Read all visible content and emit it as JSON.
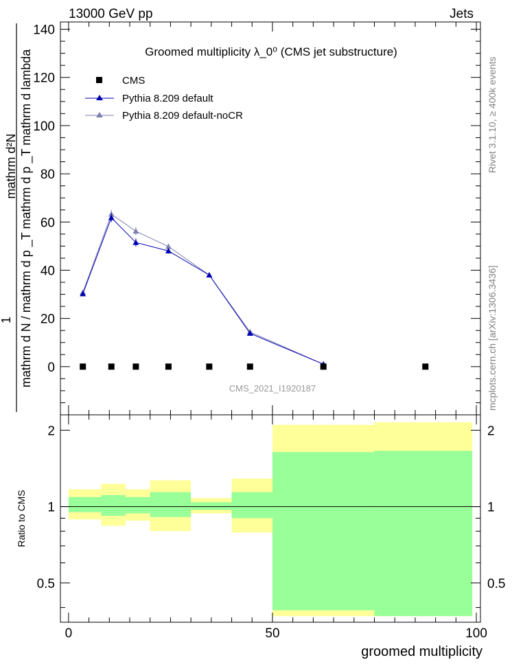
{
  "header": {
    "left": "13000 GeV pp",
    "right": "Jets"
  },
  "side_labels": {
    "rivet": "Rivet 3.1.10, ≥ 400k events",
    "mcplots": "mcplots.cern.ch [arXiv:1306.3436]"
  },
  "colors": {
    "data": "#000000",
    "pythia_default": "#0000b2",
    "pythia_nocr": "#7f7fb2",
    "band_inner": "#99ff99",
    "band_outer": "#ffff99"
  },
  "chart_data": [
    {
      "type": "scatter",
      "title": "Groomed multiplicity  λ_0⁰ (CMS jet substructure)",
      "analysis_label": "CMS_2021_I1920187",
      "ylabel_top": "1",
      "ylabel_mid": "mathrm d N / mathrm d p _T mathrm d p _T mathrm d lambda",
      "ylabel_bot": "mathrm d²N",
      "xlim": [
        -2,
        101
      ],
      "ylim": [
        -20,
        143
      ],
      "yticks": [
        0,
        20,
        40,
        60,
        80,
        100,
        120,
        140
      ],
      "legend": [
        "CMS",
        "Pythia 8.209 default",
        "Pythia 8.209 default-noCR"
      ],
      "series": [
        {
          "name": "CMS",
          "marker": "square",
          "x": [
            3.5,
            10.5,
            16.5,
            24.5,
            34.5,
            44.5,
            62.5,
            87.5
          ],
          "y": [
            0,
            0,
            0,
            0,
            0,
            0,
            0,
            0
          ]
        },
        {
          "name": "Pythia 8.209 default",
          "marker": "triangle",
          "x": [
            3.5,
            10.5,
            16.5,
            24.5,
            34.5,
            44.5,
            62.5
          ],
          "y": [
            30.2,
            61.8,
            51.5,
            48.0,
            38.0,
            13.8,
            1.0
          ],
          "err": [
            0.8,
            1.8,
            1.7,
            1.1,
            0.6,
            0.6,
            0.2
          ]
        },
        {
          "name": "Pythia 8.209 default-noCR",
          "marker": "triangle",
          "x": [
            3.5,
            10.5,
            16.5,
            24.5,
            34.5,
            44.5,
            62.5
          ],
          "y": [
            30.8,
            63.2,
            56.2,
            49.8,
            38.0,
            14.4,
            1.0
          ],
          "err": [
            0.8,
            1.8,
            1.7,
            1.1,
            0.6,
            0.6,
            0.2
          ]
        }
      ]
    },
    {
      "type": "area",
      "ylabel": "Ratio to CMS",
      "xlabel": "groomed multiplicity",
      "xlim": [
        -2,
        101
      ],
      "ylim": [
        0.35,
        2.3
      ],
      "xticks": [
        0,
        50,
        100
      ],
      "yticks": [
        0.5,
        1,
        2
      ],
      "reference_line": 1,
      "bins": [
        {
          "lo": 0,
          "hi": 8,
          "inner": [
            0.95,
            1.09
          ],
          "outer": [
            0.89,
            1.17
          ]
        },
        {
          "lo": 8,
          "hi": 14,
          "inner": [
            0.92,
            1.11
          ],
          "outer": [
            0.84,
            1.23
          ]
        },
        {
          "lo": 14,
          "hi": 20,
          "inner": [
            0.94,
            1.09
          ],
          "outer": [
            0.88,
            1.17
          ]
        },
        {
          "lo": 20,
          "hi": 30,
          "inner": [
            0.91,
            1.14
          ],
          "outer": [
            0.8,
            1.27
          ]
        },
        {
          "lo": 30,
          "hi": 40,
          "inner": [
            0.97,
            1.04
          ],
          "outer": [
            0.94,
            1.08
          ]
        },
        {
          "lo": 40,
          "hi": 50,
          "inner": [
            0.9,
            1.14
          ],
          "outer": [
            0.79,
            1.29
          ]
        },
        {
          "lo": 50,
          "hi": 75,
          "inner": [
            0.39,
            1.64
          ],
          "outer": [
            0.37,
            2.1
          ]
        },
        {
          "lo": 75,
          "hi": 99,
          "inner": [
            0.37,
            1.66
          ],
          "outer": [
            0.37,
            2.15
          ]
        }
      ]
    }
  ]
}
